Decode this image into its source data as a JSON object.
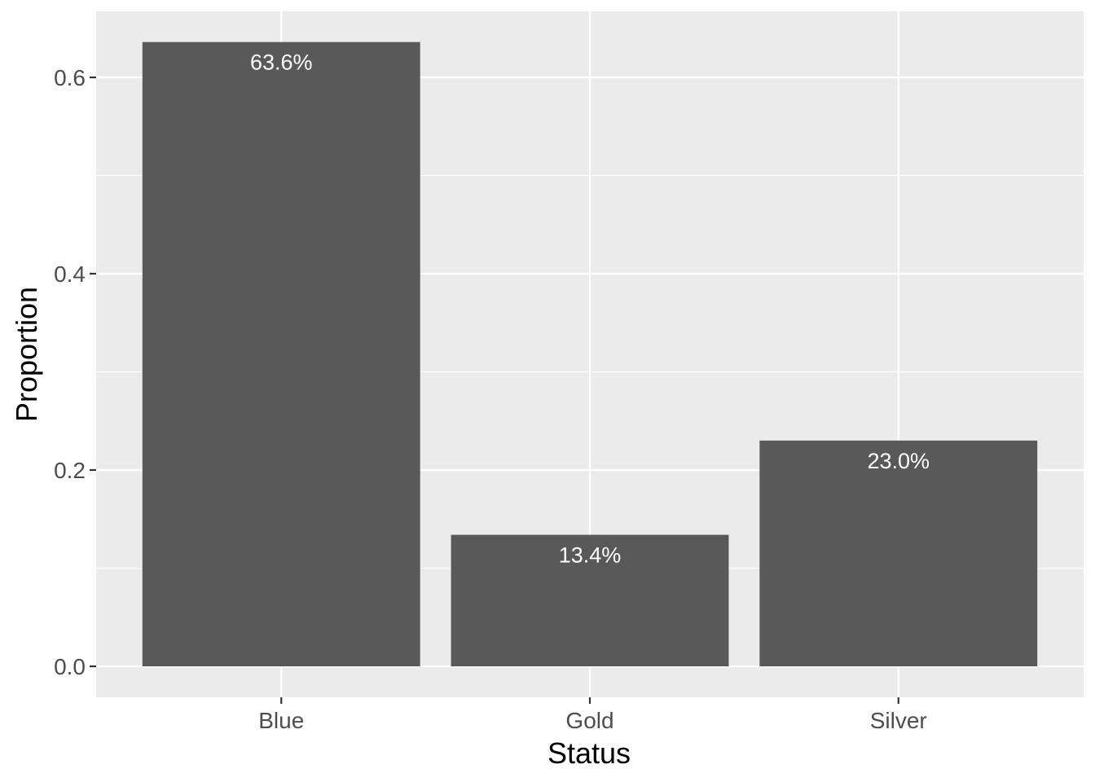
{
  "chart_data": {
    "type": "bar",
    "xlabel": "Status",
    "ylabel": "Proportion",
    "categories": [
      "Blue",
      "Gold",
      "Silver"
    ],
    "values": [
      0.636,
      0.134,
      0.23
    ],
    "data_labels": [
      "63.6%",
      "13.4%",
      "23.0%"
    ],
    "ylim": [
      0,
      0.668
    ],
    "y_ticks": [
      0.0,
      0.2,
      0.4,
      0.6
    ],
    "y_tick_labels": [
      "0.0",
      "0.2",
      "0.4",
      "0.6"
    ],
    "grid": true,
    "legend": "none",
    "colors": {
      "panel_background": "#ebebeb",
      "grid": "#ffffff",
      "bar_fill": "#595959",
      "data_label": "#ffffff",
      "tick_label": "#4d4d4d",
      "axis_title": "#000000"
    }
  }
}
